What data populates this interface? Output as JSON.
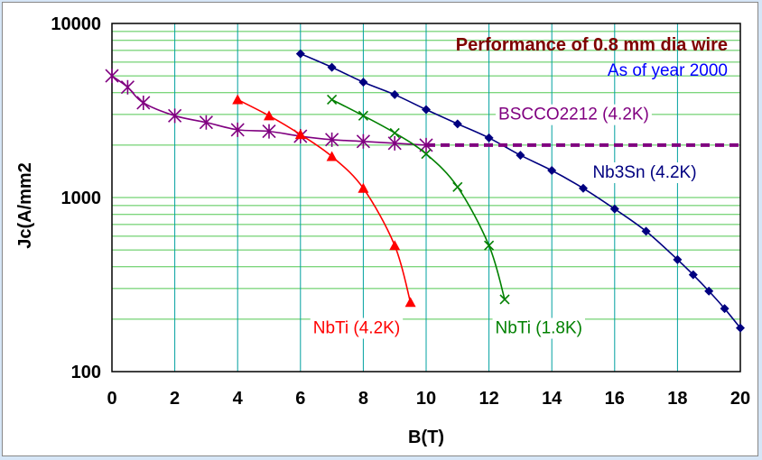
{
  "chart_data": {
    "type": "line",
    "title": "Performance of 0.8 mm dia wire",
    "subtitle": "As of year 2000",
    "xlabel": "B(T)",
    "ylabel": "Jc(A/mm2",
    "xlim": [
      0,
      20
    ],
    "ylim": [
      100,
      10000
    ],
    "yscale": "log",
    "grid": true,
    "x_ticks": [
      0,
      2,
      4,
      6,
      8,
      10,
      12,
      14,
      16,
      18,
      20
    ],
    "x_tick_labels": [
      "0",
      "2",
      "4",
      "6",
      "8",
      "10",
      "12",
      "14",
      "16",
      "18",
      "20"
    ],
    "y_ticks": [
      100,
      1000,
      10000
    ],
    "y_tick_labels": [
      "100",
      "1000",
      "10000"
    ],
    "colors": {
      "grid_vertical": "#00a0a0",
      "grid_horizontal": "#50c850",
      "title": "#7f0000",
      "subtitle": "#0000ff"
    },
    "series": [
      {
        "name": "Nb3Sn (4.2K)",
        "color": "#000080",
        "marker": "diamond",
        "x": [
          6,
          7,
          8,
          9,
          10,
          11,
          12,
          13,
          14,
          15,
          16,
          17,
          18,
          18.5,
          19,
          19.5,
          20
        ],
        "y": [
          6700,
          5600,
          4600,
          3900,
          3200,
          2650,
          2200,
          1750,
          1430,
          1130,
          860,
          640,
          440,
          360,
          290,
          230,
          178
        ]
      },
      {
        "name": "BSCCO2212 (4.2K)",
        "color": "#800080",
        "marker": "asterisk",
        "x": [
          0,
          0.5,
          1,
          2,
          3,
          4,
          5,
          6,
          7,
          8,
          9,
          10
        ],
        "y": [
          5000,
          4300,
          3500,
          2950,
          2700,
          2450,
          2400,
          2250,
          2150,
          2100,
          2050,
          2000
        ],
        "extension": {
          "x": [
            10,
            20
          ],
          "y": [
            2000,
            2000
          ],
          "dashed": true
        }
      },
      {
        "name": "NbTi (4.2K)",
        "color": "#ff0000",
        "marker": "triangle",
        "x": [
          4,
          5,
          6,
          7,
          8,
          9,
          9.5
        ],
        "y": [
          3650,
          2950,
          2300,
          1720,
          1130,
          530,
          250
        ]
      },
      {
        "name": "NbTi (1.8K)",
        "color": "#008000",
        "marker": "x",
        "x": [
          7,
          8,
          9,
          10,
          11,
          12,
          12.5
        ],
        "y": [
          3650,
          2950,
          2350,
          1780,
          1150,
          530,
          260
        ]
      }
    ],
    "annotations": [
      {
        "text": "BSCCO2212 (4.2K)",
        "color": "#800080",
        "x": 12.3,
        "y": 2800
      },
      {
        "text": "Nb3Sn (4.2K)",
        "color": "#000080",
        "x": 15.3,
        "y": 1300
      },
      {
        "text": "NbTi (4.2K)",
        "color": "#ff0000",
        "x": 6.4,
        "y": 166
      },
      {
        "text": "NbTi (1.8K)",
        "color": "#008000",
        "x": 12.2,
        "y": 166
      }
    ]
  }
}
